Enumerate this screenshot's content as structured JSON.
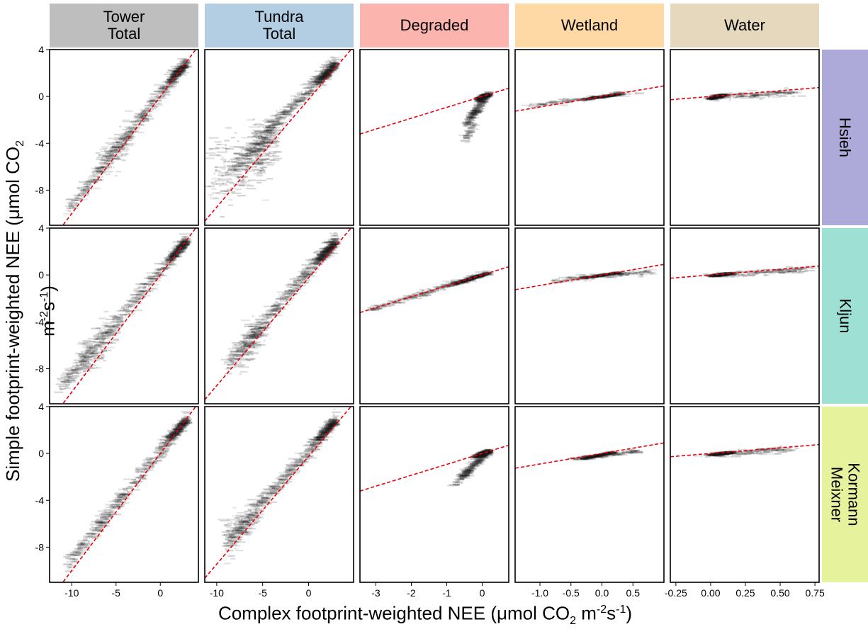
{
  "chart_data": {
    "type": "scatter",
    "layout": "faceted grid (5 columns x 3 rows), 2D density of points with red dashed fit line",
    "colors": {
      "points": "#1a1a1a",
      "fit_line": "#e8000b",
      "frame": "#000000"
    },
    "columns": [
      {
        "key": "tower",
        "label": "Tower\nTotal",
        "color": "#bebebe"
      },
      {
        "key": "tundra",
        "label": "Tundra\nTotal",
        "color": "#b3cde3"
      },
      {
        "key": "degraded",
        "label": "Degraded",
        "color": "#fbb4ae"
      },
      {
        "key": "wetland",
        "label": "Wetland",
        "color": "#fed9a6"
      },
      {
        "key": "water",
        "label": "Water",
        "color": "#e5d8bd"
      }
    ],
    "rows": [
      {
        "key": "hsieh",
        "label": "Hsieh",
        "color": "#adaad9"
      },
      {
        "key": "kljun",
        "label": "Kljun",
        "color": "#9ee0d4"
      },
      {
        "key": "km",
        "label": "Kormann\nMeixner",
        "color": "#e6f39c"
      }
    ],
    "ylim": [
      -11,
      4
    ],
    "yticks": [
      4,
      0,
      -4,
      -8
    ],
    "ytick_labels": [
      "4",
      "0",
      "-4",
      "-8"
    ],
    "xlims": {
      "tower": [
        -12.5,
        4.3
      ],
      "tundra": [
        -11.3,
        4.9
      ],
      "degraded": [
        -3.45,
        0.75
      ],
      "wetland": [
        -1.4,
        1.0
      ],
      "water": [
        -0.29,
        0.78
      ]
    },
    "xticks": {
      "tower": [
        -10,
        -5,
        0
      ],
      "tundra": [
        -10,
        -5,
        0
      ],
      "degraded": [
        -3,
        -2,
        -1,
        0
      ],
      "wetland": [
        -1.0,
        -0.5,
        0.0,
        0.5
      ],
      "water": [
        -0.25,
        0.0,
        0.25,
        0.5,
        0.75
      ]
    },
    "xtick_labels": {
      "tower": [
        "-10",
        "-5",
        "0"
      ],
      "tundra": [
        "-10",
        "-5",
        "0"
      ],
      "degraded": [
        "-3",
        "-2",
        "-1",
        "0"
      ],
      "wetland": [
        "-1.0",
        "-0.5",
        "0.0",
        "0.5"
      ],
      "water": [
        "-0.25",
        "0.00",
        "0.25",
        "0.50",
        "0.75"
      ]
    },
    "fit_lines": {
      "tower": {
        "slope": 1.0,
        "intercept": 0.0
      },
      "tundra": {
        "slope": 0.92,
        "intercept": -0.25
      },
      "degraded": {
        "slope": 0.93,
        "intercept": 0.0
      },
      "wetland": {
        "slope": 0.9,
        "intercept": 0.0
      },
      "water": {
        "slope": 0.97,
        "intercept": 0.0
      }
    },
    "clouds": {
      "hsieh": {
        "tower": [
          {
            "x0": -10.5,
            "x1": 3,
            "y0": -9.8,
            "y1": 3,
            "w": 5
          },
          {
            "x0": -7,
            "x1": -3.5,
            "y0": -6.3,
            "y1": -3.2,
            "w": 1.2,
            "o": 0.8
          },
          {
            "x0": 1,
            "x1": 3,
            "y0": 1.2,
            "y1": 2.9,
            "w": 2.5,
            "o": 0.15
          }
        ],
        "tundra": [
          {
            "x0": -8,
            "x1": 3,
            "y0": -6,
            "y1": 3,
            "w": 5
          },
          {
            "x0": -10.5,
            "x1": -4.5,
            "y0": -7.2,
            "y1": -4.5,
            "w": 2.5,
            "o": 1.5
          },
          {
            "x0": -6,
            "x1": -3.5,
            "y0": -4.8,
            "y1": -3.3,
            "w": 1.5,
            "o": 1.0
          },
          {
            "x0": 1,
            "x1": 3,
            "y0": 1.2,
            "y1": 2.8,
            "w": 2.5,
            "o": 0.15
          }
        ],
        "degraded": [
          {
            "x0": -0.45,
            "x1": 0.15,
            "y0": -2.5,
            "y1": 0.2,
            "w": 2.5,
            "o": 0.12
          },
          {
            "x0": -0.15,
            "x1": 0.2,
            "y0": -0.3,
            "y1": 0.2,
            "w": 3,
            "o": 0.08
          },
          {
            "x0": -0.5,
            "x1": -0.2,
            "y0": -3.8,
            "y1": -2.2,
            "w": 0.5,
            "o": 0.1
          }
        ],
        "wetland": [
          {
            "x0": -1.2,
            "x1": 0.6,
            "y0": -0.8,
            "y1": 0.4,
            "w": 1.2,
            "o": 0.1
          },
          {
            "x0": -0.3,
            "x1": 0.3,
            "y0": -0.25,
            "y1": 0.2,
            "w": 2.5,
            "o": 0.05
          }
        ],
        "water": [
          {
            "x0": 0.0,
            "x1": 0.6,
            "y0": -0.15,
            "y1": 0.35,
            "w": 1.5,
            "o": 0.15
          },
          {
            "x0": 0.0,
            "x1": 0.1,
            "y0": -0.2,
            "y1": 0.15,
            "w": 3,
            "o": 0.05
          }
        ]
      },
      "kljun": {
        "tower": [
          {
            "x0": -11.5,
            "x1": 3,
            "y0": -9.8,
            "y1": 3,
            "w": 5
          },
          {
            "x0": -9,
            "x1": -5,
            "y0": -7.8,
            "y1": -4.3,
            "w": 1.5,
            "o": 0.8
          },
          {
            "x0": 1,
            "x1": 3,
            "y0": 1.2,
            "y1": 2.9,
            "w": 2.5,
            "o": 0.15
          }
        ],
        "tundra": [
          {
            "x0": -9,
            "x1": 3,
            "y0": -7.8,
            "y1": 3,
            "w": 5
          },
          {
            "x0": -8,
            "x1": -5,
            "y0": -7.3,
            "y1": -4.5,
            "w": 1.5,
            "o": 0.8
          },
          {
            "x0": 1,
            "x1": 3,
            "y0": 1.2,
            "y1": 2.8,
            "w": 2.5,
            "o": 0.15
          }
        ],
        "degraded": [
          {
            "x0": -3.2,
            "x1": 0.2,
            "y0": -3.0,
            "y1": 0.2,
            "w": 2.5,
            "o": 0.12
          },
          {
            "x0": -0.8,
            "x1": 0.2,
            "y0": -0.8,
            "y1": 0.2,
            "w": 3,
            "o": 0.05
          }
        ],
        "wetland": [
          {
            "x0": -0.8,
            "x1": 0.8,
            "y0": -0.55,
            "y1": 0.3,
            "w": 1.5,
            "o": 0.12
          },
          {
            "x0": -0.3,
            "x1": 0.3,
            "y0": -0.25,
            "y1": 0.2,
            "w": 2.5,
            "o": 0.05
          }
        ],
        "water": [
          {
            "x0": 0.0,
            "x1": 0.7,
            "y0": -0.05,
            "y1": 0.5,
            "w": 1.5,
            "o": 0.12
          },
          {
            "x0": 0.0,
            "x1": 0.15,
            "y0": -0.1,
            "y1": 0.15,
            "w": 3,
            "o": 0.05
          }
        ]
      },
      "km": {
        "tower": [
          {
            "x0": -10.5,
            "x1": 3,
            "y0": -9.5,
            "y1": 3,
            "w": 5
          },
          {
            "x0": 1,
            "x1": 3,
            "y0": 1.2,
            "y1": 2.9,
            "w": 2.5,
            "o": 0.15
          }
        ],
        "tundra": [
          {
            "x0": -9,
            "x1": 3,
            "y0": -7.8,
            "y1": 3,
            "w": 5
          },
          {
            "x0": -9,
            "x1": -5.5,
            "y0": -7.5,
            "y1": -5,
            "w": 1.5,
            "o": 0.8
          },
          {
            "x0": 1,
            "x1": 3,
            "y0": 1.2,
            "y1": 2.8,
            "w": 2.5,
            "o": 0.15
          }
        ],
        "degraded": [
          {
            "x0": -0.6,
            "x1": 0.2,
            "y0": -2.0,
            "y1": 0.2,
            "w": 2.5,
            "o": 0.12
          },
          {
            "x0": -0.2,
            "x1": 0.2,
            "y0": -0.3,
            "y1": 0.2,
            "w": 3,
            "o": 0.08
          },
          {
            "x0": -0.8,
            "x1": -0.3,
            "y0": -2.6,
            "y1": -1.5,
            "w": 0.5,
            "o": 0.1
          }
        ],
        "wetland": [
          {
            "x0": -0.5,
            "x1": 0.6,
            "y0": -0.5,
            "y1": 0.2,
            "w": 1.5,
            "o": 0.1
          },
          {
            "x0": -0.3,
            "x1": 0.2,
            "y0": -0.45,
            "y1": 0.1,
            "w": 2.5,
            "o": 0.05
          }
        ],
        "water": [
          {
            "x0": 0.0,
            "x1": 0.6,
            "y0": -0.1,
            "y1": 0.4,
            "w": 1.5,
            "o": 0.12
          },
          {
            "x0": 0.0,
            "x1": 0.15,
            "y0": -0.15,
            "y1": 0.1,
            "w": 3,
            "o": 0.05
          }
        ]
      }
    },
    "ylabel_parts": [
      "Simple footprint-weighted NEE (",
      "μ",
      "mol CO",
      "2",
      " m",
      "-2",
      "s",
      "-1",
      ")"
    ],
    "xlabel_parts": [
      "Complex footprint-weighted NEE (",
      "μ",
      "mol CO",
      "2",
      " m",
      "-2",
      "s",
      "-1",
      ")"
    ]
  }
}
